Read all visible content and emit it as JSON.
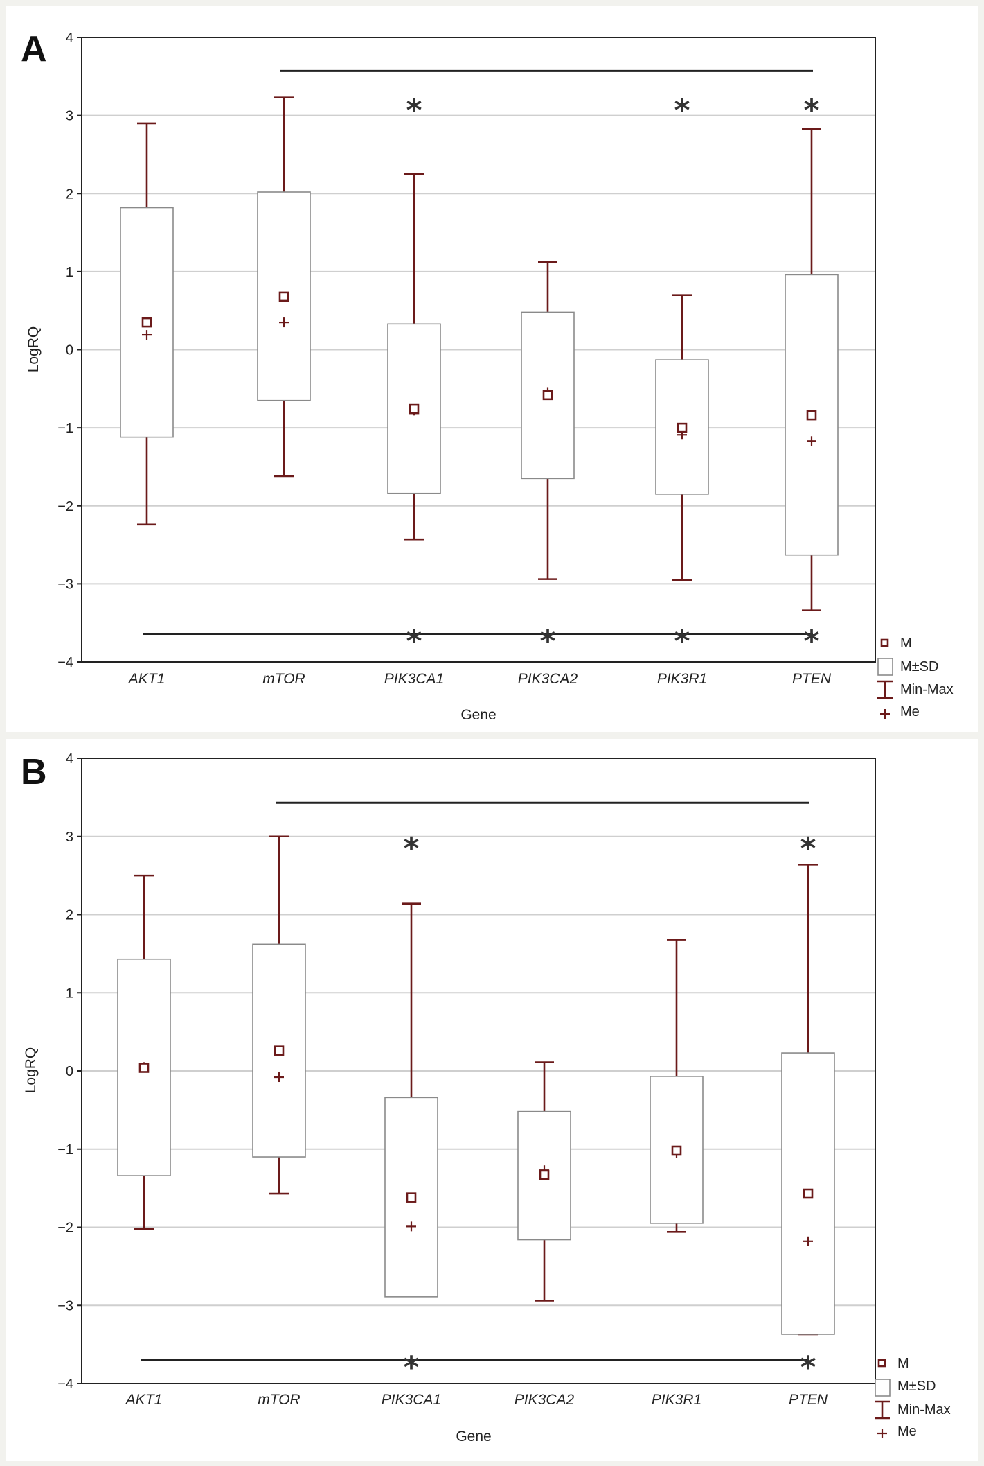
{
  "chart_data": [
    {
      "panel": "A",
      "type": "boxplot",
      "xlabel": "Gene",
      "ylabel": "LogRQ",
      "ylim": [
        -4,
        4
      ],
      "yticks": [
        4,
        3,
        2,
        1,
        0,
        -1,
        -2,
        -3,
        -4
      ],
      "ytick_labels": [
        "4",
        "3",
        "2",
        "1",
        "0",
        "−1",
        "−2",
        "−3",
        "−4"
      ],
      "grid": true,
      "categories": [
        "AKT1",
        "mTOR",
        "PIK3CA1",
        "PIK3CA2",
        "PIK3R1",
        "PTEN"
      ],
      "mean": [
        0.35,
        0.68,
        -0.76,
        -0.58,
        -1.0,
        -0.84
      ],
      "sd_low": [
        -1.12,
        -0.65,
        -1.84,
        -1.65,
        -1.85,
        -2.63
      ],
      "sd_high": [
        1.82,
        2.02,
        0.33,
        0.48,
        -0.13,
        0.96
      ],
      "min": [
        -2.24,
        -1.62,
        -2.43,
        -2.94,
        -2.95,
        -3.34
      ],
      "max": [
        2.9,
        3.23,
        2.25,
        1.12,
        0.7,
        2.83
      ],
      "median": [
        0.19,
        0.35,
        -0.78,
        -0.55,
        -1.09,
        -1.17
      ],
      "sig_top": {
        "y": 3.57,
        "from": "mTOR",
        "to": "PTEN",
        "stars": [
          "PIK3CA1",
          "PIK3R1",
          "PTEN"
        ],
        "star_y": 3.2
      },
      "sig_bottom": {
        "y": -3.64,
        "from": "AKT1",
        "to": "PTEN",
        "stars": [
          "PIK3CA1",
          "PIK3CA2",
          "PIK3R1",
          "PTEN"
        ],
        "star_y": -3.6
      },
      "star_text": "*"
    },
    {
      "panel": "B",
      "type": "boxplot",
      "xlabel": "Gene",
      "ylabel": "LogRQ",
      "ylim": [
        -4,
        4
      ],
      "yticks": [
        4,
        3,
        2,
        1,
        0,
        -1,
        -2,
        -3,
        -4
      ],
      "ytick_labels": [
        "4",
        "3",
        "2",
        "1",
        "0",
        "−1",
        "−2",
        "−3",
        "−4"
      ],
      "grid": true,
      "categories": [
        "AKT1",
        "mTOR",
        "PIK3CA1",
        "PIK3CA2",
        "PIK3R1",
        "PTEN"
      ],
      "mean": [
        0.04,
        0.26,
        -1.62,
        -1.33,
        -1.02,
        -1.57
      ],
      "sd_low": [
        -1.34,
        -1.1,
        -2.89,
        -2.16,
        -1.95,
        -3.37
      ],
      "sd_high": [
        1.43,
        1.62,
        -0.34,
        -0.52,
        -0.07,
        0.23
      ],
      "min": [
        -2.02,
        -1.57,
        -2.0,
        -2.94,
        -2.06,
        -3.37
      ],
      "max": [
        2.5,
        3.0,
        2.14,
        0.11,
        1.68,
        2.64
      ],
      "median": [
        0.05,
        -0.08,
        -1.99,
        -1.27,
        -1.05,
        -2.18
      ],
      "sig_top": {
        "y": 3.43,
        "from": "mTOR",
        "to": "PTEN",
        "stars": [
          "PIK3CA1",
          "PTEN"
        ],
        "star_y": 2.98
      },
      "sig_bottom": {
        "y": -3.7,
        "from": "AKT1",
        "to": "PTEN",
        "stars": [
          "PIK3CA1",
          "PTEN"
        ],
        "star_y": -3.66
      },
      "star_text": "*"
    }
  ],
  "legend": {
    "mean": "M",
    "sd": "M±SD",
    "range": "Min-Max",
    "median": "Me"
  },
  "colors": {
    "marker": "#6b1a1a",
    "box": "#8a8a8a",
    "grid": "#cfcfcf"
  }
}
